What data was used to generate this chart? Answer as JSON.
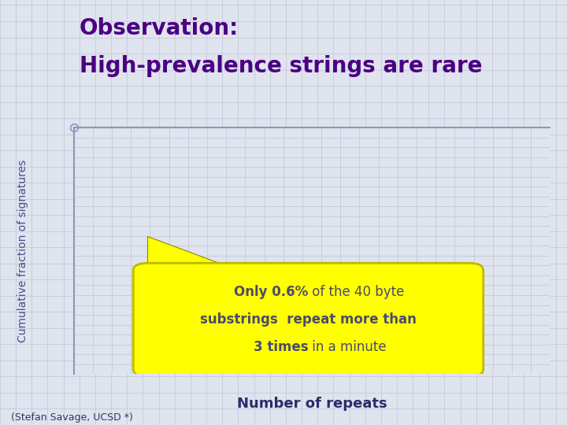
{
  "title_line1": "Observation:",
  "title_line2": "High-prevalence strings are rare",
  "title_color": "#4B0082",
  "background_color": "#E0E4EE",
  "grid_color": "#C0C4D8",
  "ylabel": "Cumulative fraction of signatures",
  "xlabel": "Number of repeats",
  "ylabel_color": "#4B4B8B",
  "xlabel_color": "#2B2B6B",
  "axis_line_color": "#8899BB",
  "callout_box_color": "#FFFF00",
  "callout_box_edge": "#BBBB00",
  "callout_text_color": "#4B4B6B",
  "footer_text": "(Stefan Savage, UCSD *)",
  "footer_color": "#333366",
  "arrow_color": "#FFFF00",
  "arrow_edge_color": "#888800",
  "title_fontsize": 20,
  "ylabel_fontsize": 10,
  "xlabel_fontsize": 13,
  "callout_fontsize": 12,
  "footer_fontsize": 9
}
